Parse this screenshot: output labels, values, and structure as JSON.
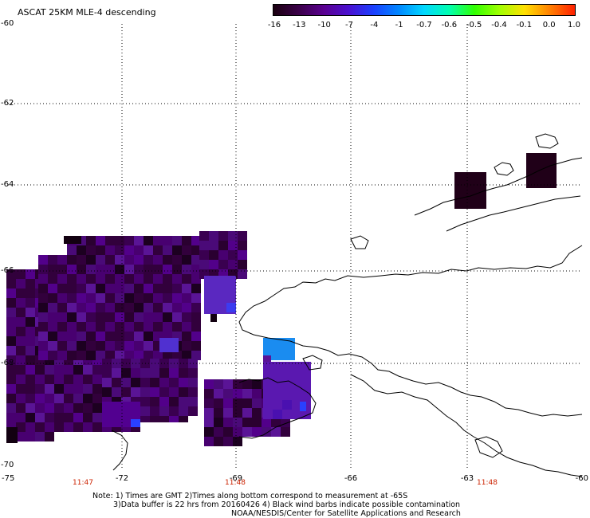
{
  "title": "ASCAT 25KM MLE-4 descending",
  "colorbar": {
    "labels": [
      "-16",
      "-13",
      "-10",
      "-7",
      "-4",
      "-1",
      "-0.7",
      "-0.6",
      "-0.5",
      "-0.4",
      "-0.1",
      "0.0",
      "1.0"
    ],
    "colors": [
      "#1a0010",
      "#3a0048",
      "#5a0090",
      "#4a10d0",
      "#1a40ff",
      "#0088ff",
      "#00d8ff",
      "#00ffb0",
      "#30ff00",
      "#a0ff00",
      "#ffe000",
      "#ff8000",
      "#ff2000"
    ]
  },
  "map": {
    "lat_labels": [
      "-60",
      "-62",
      "-64",
      "-66",
      "-68",
      "-70"
    ],
    "lon_labels": [
      "-75",
      "-72",
      "-69",
      "-66",
      "-63",
      "-60"
    ],
    "time_labels": [
      "11:47",
      "11:48",
      "11:48"
    ],
    "grid": "dotted",
    "colors": {
      "land_outline": "#000000",
      "time_label": "#cc2200"
    }
  },
  "notes": {
    "line1": "Note: 1) Times are GMT 2)Times along bottom correspond to measurement at -65S",
    "line2": "3)Data buffer is 22 hrs from 20160426 4) Black wind barbs indicate possible contamination",
    "line3": "NOAA/NESDIS/Center for Satellite Applications and Research"
  }
}
